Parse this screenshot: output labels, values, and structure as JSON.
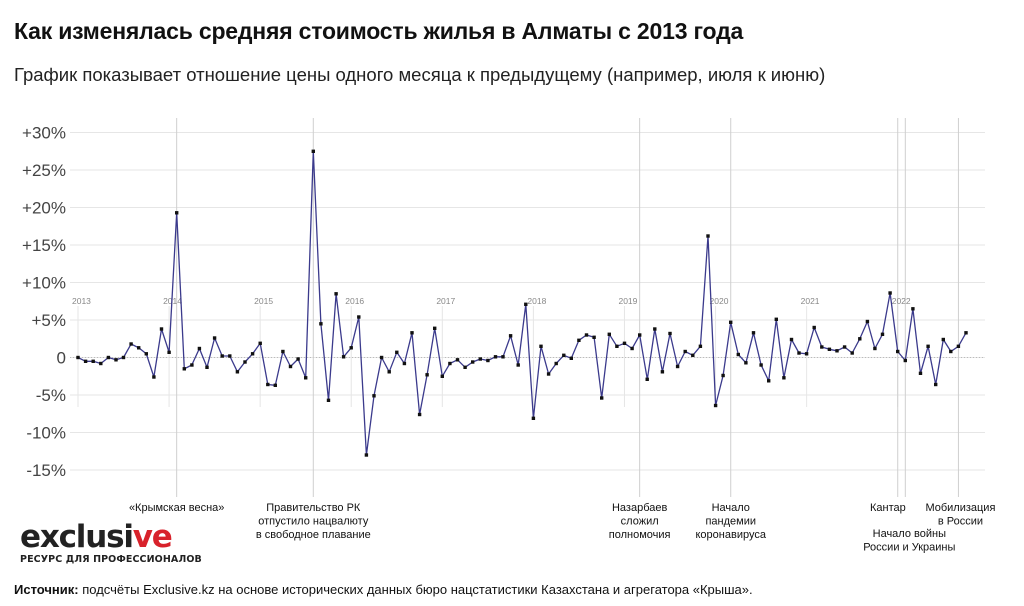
{
  "header": {
    "title": "Как изменялась средняя стоимость жилья в Алматы с 2013 года",
    "subtitle": "График показывает отношение цены одного месяца к предыдущему (например, июля к июню)"
  },
  "logo": {
    "word_start": "exclusi",
    "word_accent": "ve",
    "tagline": "РЕСУРС ДЛЯ ПРОФЕССИОНАЛОВ"
  },
  "source": {
    "label": "Источник:",
    "text": " подсчёты Exclusive.kz на основе исторических данных бюро нацстатистики Казахстана и агрегатора «Крыша»."
  },
  "colors": {
    "line": "#3b3a8c",
    "marker": "#111111",
    "grid": "#e6e6e6",
    "event_line": "#cfcfcf",
    "logo_accent": "#d8222b"
  },
  "chart_data": {
    "type": "line",
    "ylim": [
      -20,
      30
    ],
    "ylabel": "",
    "xlabel": "",
    "yticks": [
      {
        "value": 30,
        "label": "+30%"
      },
      {
        "value": 25,
        "label": "+25%"
      },
      {
        "value": 20,
        "label": "+20%"
      },
      {
        "value": 15,
        "label": "+15%"
      },
      {
        "value": 10,
        "label": "+10%"
      },
      {
        "value": 5,
        "label": "+5%"
      },
      {
        "value": 0,
        "label": "0"
      },
      {
        "value": -5,
        "label": "-5%"
      },
      {
        "value": -10,
        "label": "-10%"
      },
      {
        "value": -15,
        "label": "-15%"
      }
    ],
    "years": [
      "2013",
      "2014",
      "2015",
      "2016",
      "2017",
      "2018",
      "2019",
      "2020",
      "2021",
      "2022"
    ],
    "x_start": "2013-01",
    "values": [
      0,
      -0.5,
      -0.5,
      -0.8,
      0,
      -0.3,
      0,
      1.8,
      1.3,
      0.5,
      -2.6,
      3.8,
      0.7,
      19.3,
      -1.5,
      -1,
      1.2,
      -1.3,
      2.6,
      0.2,
      0.2,
      -1.9,
      -0.6,
      0.5,
      1.9,
      -3.6,
      -3.7,
      0.8,
      -1.2,
      -0.2,
      -2.7,
      27.5,
      4.5,
      -5.7,
      8.5,
      0.1,
      1.3,
      5.4,
      -13,
      -5.1,
      0,
      -1.9,
      0.7,
      -0.8,
      3.3,
      -7.6,
      -2.3,
      3.9,
      -2.5,
      -0.8,
      -0.3,
      -1.3,
      -0.6,
      -0.2,
      -0.4,
      0.1,
      0.1,
      2.9,
      -1,
      7.1,
      -8.1,
      1.5,
      -2.2,
      -0.8,
      0.3,
      -0.1,
      2.3,
      3,
      2.7,
      -5.4,
      3.1,
      1.5,
      1.9,
      1.2,
      3,
      -2.9,
      3.8,
      -1.9,
      3.2,
      -1.2,
      0.8,
      0.3,
      1.5,
      16.2,
      -6.4,
      -2.4,
      4.7,
      0.4,
      -0.7,
      3.3,
      -1,
      -3.1,
      5.1,
      -2.7,
      2.4,
      0.6,
      0.5,
      4,
      1.4,
      1.1,
      0.9,
      1.4,
      0.6,
      2.5,
      4.8,
      1.2,
      3.1,
      8.6,
      0.8,
      -0.4,
      6.5,
      -2.1,
      1.5,
      -3.6,
      2.4,
      0.8,
      1.5,
      3.3
    ],
    "events": [
      {
        "date": "2014-02",
        "label": [
          "«Крымская весна»"
        ]
      },
      {
        "date": "2015-08",
        "label": [
          "Правительство РК",
          "отпустило нацвалюту",
          "в свободное плавание"
        ]
      },
      {
        "date": "2019-03",
        "label": [
          "Назарбаев",
          "сложил",
          "полномочия"
        ]
      },
      {
        "date": "2020-03",
        "label": [
          "Начало",
          "пандемии",
          "коронавируса"
        ]
      },
      {
        "date": "2022-01",
        "label": [
          "Кантар"
        ]
      },
      {
        "date": "2022-02",
        "label": [
          "Начало войны",
          "России и Украины"
        ]
      },
      {
        "date": "2022-09",
        "label": [
          "Мобилизация",
          "в России"
        ]
      }
    ]
  }
}
